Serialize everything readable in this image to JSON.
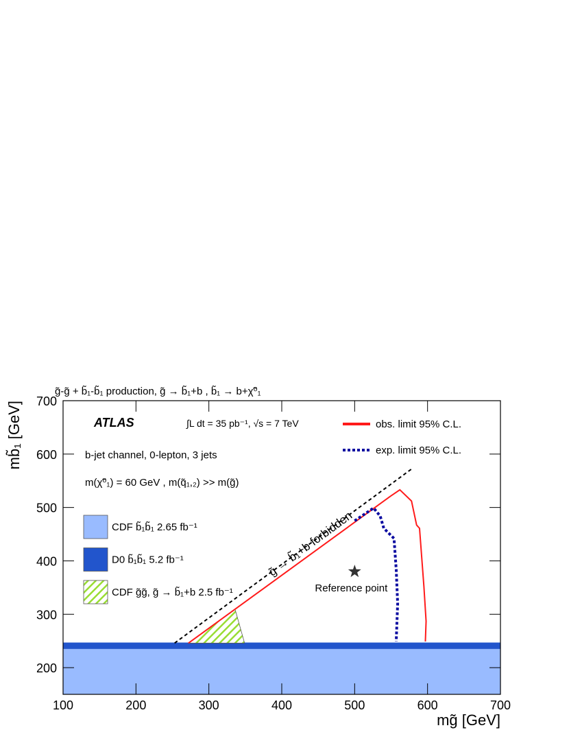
{
  "chart_data": {
    "type": "line",
    "title": "g̃-g̃ + b̃₁-b̃₁ production, g̃ → b̃₁+b , b̃₁ → b+χ̃⁰₁",
    "x_label": "mg̃ [GeV]",
    "y_label": "mb̃₁ [GeV]",
    "xlim": [
      100,
      700
    ],
    "ylim": [
      150,
      700
    ],
    "xticks": [
      100,
      200,
      300,
      400,
      500,
      600,
      700
    ],
    "yticks": [
      200,
      300,
      400,
      500,
      600,
      700
    ],
    "annotations": [
      "ATLAS",
      "∫L dt = 35 pb⁻¹, √s = 7 TeV",
      "b-jet channel, 0-lepton, 3 jets",
      "m(χ̃⁰₁) = 60 GeV , m(q̃₁,₂) >> m(g̃)"
    ],
    "series": [
      {
        "name": "obs. limit 95% C.L.",
        "color": "#ff1a1a",
        "style": "solid",
        "x": [
          272,
          549,
          562,
          578,
          585,
          589,
          595,
          598,
          597
        ],
        "y": [
          246,
          521,
          533,
          512,
          467,
          461,
          352,
          287,
          249
        ]
      },
      {
        "name": "exp. limit 95% C.L.",
        "color": "#0a0aa0",
        "style": "dotted",
        "x": [
          500,
          526,
          535,
          540,
          554,
          557,
          559,
          557
        ],
        "y": [
          475,
          499,
          484,
          461,
          442,
          384,
          320,
          249
        ]
      }
    ],
    "boundary": {
      "label": "g̃ → b̃₁+b forbidden",
      "color": "#000000",
      "x": [
        253,
        580
      ],
      "y": [
        246,
        574
      ]
    },
    "regions": [
      {
        "name": "CDF b̃₁b̃₁ 2.65 fb⁻¹",
        "color": "#99bbff",
        "hatch": false,
        "x": [
          100,
          700,
          700,
          100
        ],
        "y": [
          150,
          150,
          235,
          235
        ]
      },
      {
        "name": "D0 b̃₁b̃₁ 5.2 fb⁻¹",
        "color": "#2255cc",
        "hatch": false,
        "x": [
          100,
          700,
          700,
          100
        ],
        "y": [
          235,
          235,
          247,
          247
        ]
      },
      {
        "name": "CDF g̃g̃, g̃ → b̃₁+b 2.5 fb⁻¹",
        "color": "#99dd33",
        "hatch": true,
        "x": [
          272,
          336,
          349
        ],
        "y": [
          246,
          309,
          246
        ]
      }
    ],
    "reference_point": {
      "label": "Reference point",
      "x": 500,
      "y": 380
    }
  }
}
